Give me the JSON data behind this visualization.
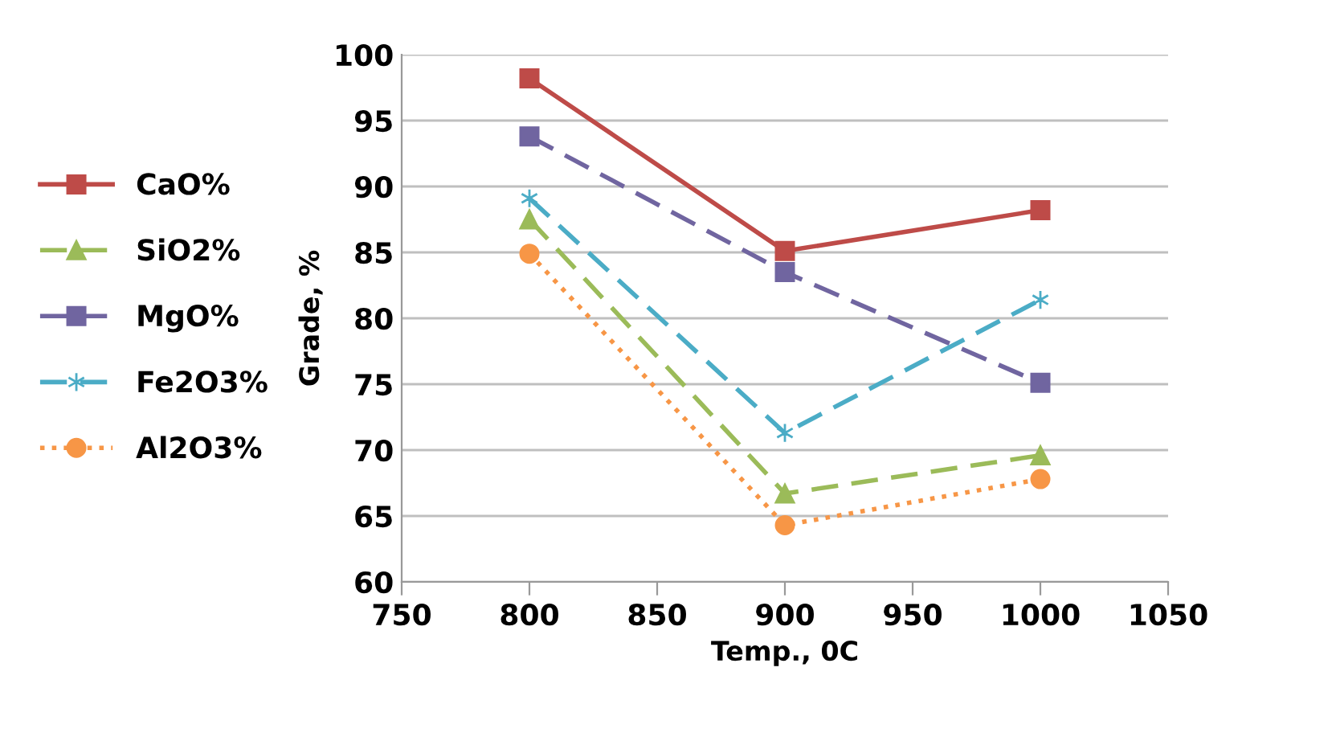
{
  "chart_data": {
    "type": "line",
    "xlabel": "Temp., 0C",
    "ylabel": "Grade, %",
    "x": [
      800,
      900,
      1000
    ],
    "series": [
      {
        "name": "CaO%",
        "color": "#be4b48",
        "values": [
          98.2,
          85.1,
          88.2
        ],
        "marker": "square",
        "line_style": "solid"
      },
      {
        "name": "SiO2%",
        "color": "#9bbb59",
        "values": [
          87.5,
          66.7,
          69.6
        ],
        "marker": "triangle",
        "line_style": "dashed"
      },
      {
        "name": "MgO%",
        "color": "#7065a0",
        "values": [
          93.8,
          83.5,
          75.1
        ],
        "marker": "square",
        "line_style": "dashed"
      },
      {
        "name": "Fe2O3%",
        "color": "#4bacc6",
        "values": [
          89.1,
          71.3,
          81.4
        ],
        "marker": "cross",
        "line_style": "dashed"
      },
      {
        "name": "Al2O3%",
        "color": "#f79646",
        "values": [
          84.9,
          64.3,
          67.8
        ],
        "marker": "circle",
        "line_style": "dotted"
      }
    ],
    "xlim": [
      750,
      1050
    ],
    "xticks": [
      750,
      800,
      850,
      900,
      950,
      1000,
      1050
    ],
    "ylim": [
      60,
      100
    ],
    "yticks": [
      60,
      65,
      70,
      75,
      80,
      85,
      90,
      95,
      100
    ],
    "grid": "y",
    "legend": "left"
  }
}
